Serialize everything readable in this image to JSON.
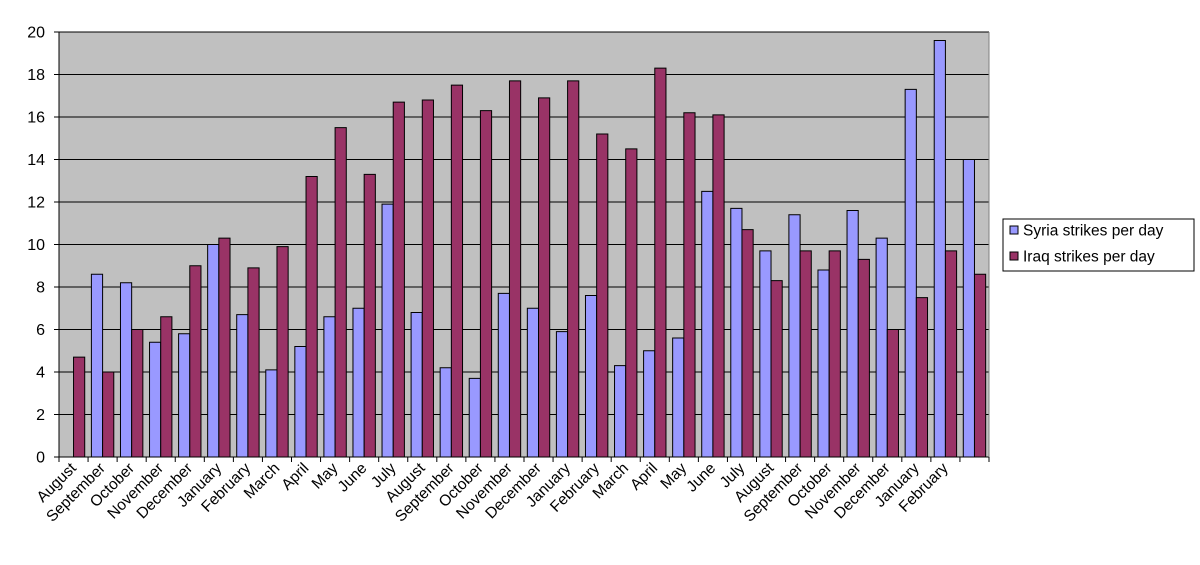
{
  "chart_data": {
    "type": "bar",
    "title": "",
    "xlabel": "",
    "ylabel": "",
    "ylim": [
      0,
      20
    ],
    "yticks": [
      0,
      2,
      4,
      6,
      8,
      10,
      12,
      14,
      16,
      18,
      20
    ],
    "grid": true,
    "legend_position": "right",
    "categories": [
      "August",
      "September",
      "October",
      "November",
      "December",
      "January",
      "February",
      "March",
      "April",
      "May",
      "June",
      "July",
      "August",
      "September",
      "October",
      "November",
      "December",
      "January",
      "February",
      "March",
      "April",
      "May",
      "June",
      "July",
      "August",
      "September",
      "October",
      "November",
      "December",
      "January",
      "February",
      ""
    ],
    "series": [
      {
        "name": "Syria strikes per day",
        "color": "#9999ff",
        "values": [
          0,
          8.6,
          8.2,
          5.4,
          5.8,
          10.0,
          6.7,
          4.1,
          5.2,
          6.6,
          7.0,
          11.9,
          6.8,
          4.2,
          3.7,
          7.7,
          7.0,
          5.9,
          7.6,
          4.3,
          5.0,
          5.6,
          12.5,
          11.7,
          9.7,
          11.4,
          8.8,
          11.6,
          10.3,
          17.3,
          19.6,
          14.0
        ]
      },
      {
        "name": "Iraq strikes per day",
        "color": "#993366",
        "values": [
          4.7,
          4.0,
          6.0,
          6.6,
          9.0,
          10.3,
          8.9,
          9.9,
          13.2,
          15.5,
          13.3,
          16.7,
          16.8,
          17.5,
          16.3,
          17.7,
          16.9,
          17.7,
          15.2,
          14.5,
          18.3,
          16.2,
          16.1,
          10.7,
          8.3,
          9.7,
          9.7,
          9.3,
          6.0,
          7.5,
          9.7,
          8.6
        ]
      }
    ],
    "colors": {
      "plot_background": "#c0c0c0",
      "gridline": "#000000",
      "axis": "#000000",
      "bar_outline": "#000000"
    }
  }
}
